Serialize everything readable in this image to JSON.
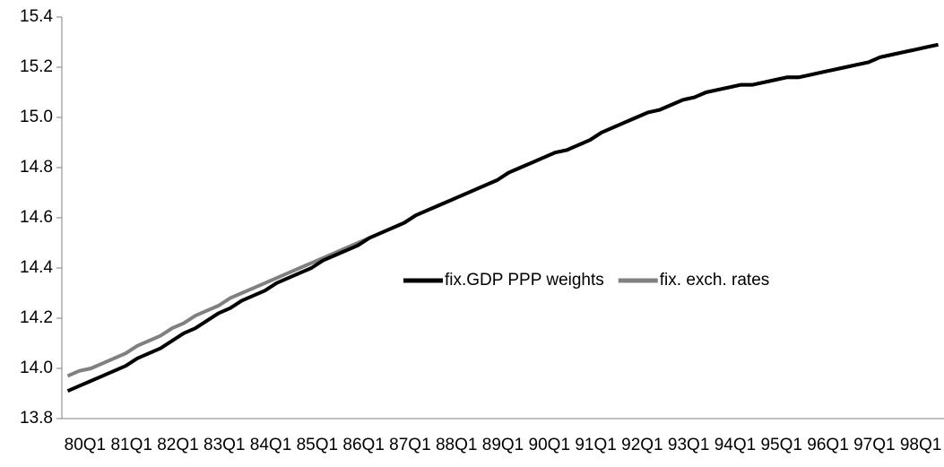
{
  "chart_data": {
    "type": "line",
    "categories": [
      "80Q1",
      null,
      null,
      null,
      "81Q1",
      null,
      null,
      null,
      "82Q1",
      null,
      null,
      null,
      "83Q1",
      null,
      null,
      null,
      "84Q1",
      null,
      null,
      null,
      "85Q1",
      null,
      null,
      null,
      "86Q1",
      null,
      null,
      null,
      "87Q1",
      null,
      null,
      null,
      "88Q1",
      null,
      null,
      null,
      "89Q1",
      null,
      null,
      null,
      "90Q1",
      null,
      null,
      null,
      "91Q1",
      null,
      null,
      null,
      "92Q1",
      null,
      null,
      null,
      "93Q1",
      null,
      null,
      null,
      "94Q1",
      null,
      null,
      null,
      "95Q1",
      null,
      null,
      null,
      "96Q1",
      null,
      null,
      null,
      "97Q1",
      null,
      null,
      null,
      "98Q1",
      null,
      null,
      null
    ],
    "series": [
      {
        "name": "fix.GDP PPP weights",
        "color": "#000000",
        "values": [
          13.91,
          13.93,
          13.95,
          13.97,
          13.99,
          14.01,
          14.04,
          14.06,
          14.08,
          14.11,
          14.14,
          14.16,
          14.19,
          14.22,
          14.24,
          14.27,
          14.29,
          14.31,
          14.34,
          14.36,
          14.38,
          14.4,
          14.43,
          14.45,
          14.47,
          14.49,
          14.52,
          14.54,
          14.56,
          14.58,
          14.61,
          14.63,
          14.65,
          14.67,
          14.69,
          14.71,
          14.73,
          14.75,
          14.78,
          14.8,
          14.82,
          14.84,
          14.86,
          14.87,
          14.89,
          14.91,
          14.94,
          14.96,
          14.98,
          15.0,
          15.02,
          15.03,
          15.05,
          15.07,
          15.08,
          15.1,
          15.11,
          15.12,
          15.13,
          15.13,
          15.14,
          15.15,
          15.16,
          15.16,
          15.17,
          15.18,
          15.19,
          15.2,
          15.21,
          15.22,
          15.24,
          15.25,
          15.26,
          15.27,
          15.28,
          15.29
        ]
      },
      {
        "name": "fix. exch. rates",
        "color": "#808080",
        "values": [
          13.97,
          13.99,
          14.0,
          14.02,
          14.04,
          14.06,
          14.09,
          14.11,
          14.13,
          14.16,
          14.18,
          14.21,
          14.23,
          14.25,
          14.28,
          14.3,
          14.32,
          14.34,
          14.36,
          14.38,
          14.4,
          14.42,
          14.44,
          14.46,
          14.48,
          14.5,
          14.52,
          14.54,
          14.56,
          14.58,
          14.61,
          14.63,
          14.65,
          14.67,
          14.69,
          14.71,
          14.73,
          14.75,
          14.78,
          14.8,
          14.82,
          14.84,
          14.86,
          14.87,
          14.89,
          14.91,
          14.94,
          14.96,
          14.98,
          15.0,
          15.02,
          15.03,
          15.05,
          15.07,
          15.08,
          15.1,
          15.11,
          15.12,
          15.13,
          15.13,
          15.14,
          15.15,
          15.16,
          15.16,
          15.17,
          15.18,
          15.19,
          15.2,
          15.21,
          15.22,
          15.24,
          15.25,
          15.26,
          15.27,
          15.28,
          15.29
        ]
      }
    ],
    "ylim": [
      13.8,
      15.4
    ],
    "yticks": [
      13.8,
      {
        "value": 14,
        "label": "14.0"
      },
      14.2,
      14.4,
      14.6,
      14.8,
      {
        "value": 15,
        "label": "15.0"
      },
      15.2,
      15.4
    ],
    "grid": false
  }
}
